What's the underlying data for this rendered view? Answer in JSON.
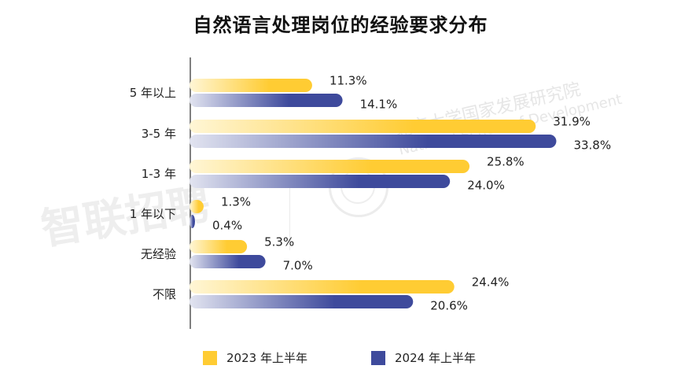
{
  "title": "自然语言处理岗位的经验要求分布",
  "watermarks": {
    "left": "智联招聘",
    "right_line1": "北京大学国家发展研究院",
    "right_line2": "National School of Development"
  },
  "colors": {
    "series_2023": "#FFCC33",
    "series_2023_fade": "#FFF6D6",
    "series_2024": "#3E4A9C",
    "series_2024_fade": "#E2E4F0",
    "axis": "#555555"
  },
  "chart_data": {
    "type": "bar",
    "orientation": "horizontal",
    "title": "自然语言处理岗位的经验要求分布",
    "categories": [
      "5 年以上",
      "3-5 年",
      "1-3 年",
      "1 年以下",
      "无经验",
      "不限"
    ],
    "series": [
      {
        "name": "2023 年上半年",
        "values": [
          11.3,
          31.9,
          25.8,
          1.3,
          5.3,
          24.4
        ],
        "labels": [
          "11.3%",
          "31.9%",
          "25.8%",
          "1.3%",
          "5.3%",
          "24.4%"
        ]
      },
      {
        "name": "2024 年上半年",
        "values": [
          14.1,
          33.8,
          24.0,
          0.4,
          7.0,
          20.6
        ],
        "labels": [
          "14.1%",
          "33.8%",
          "24.0%",
          "0.4%",
          "7.0%",
          "20.6%"
        ]
      }
    ],
    "legend_position": "bottom",
    "grid": false
  }
}
